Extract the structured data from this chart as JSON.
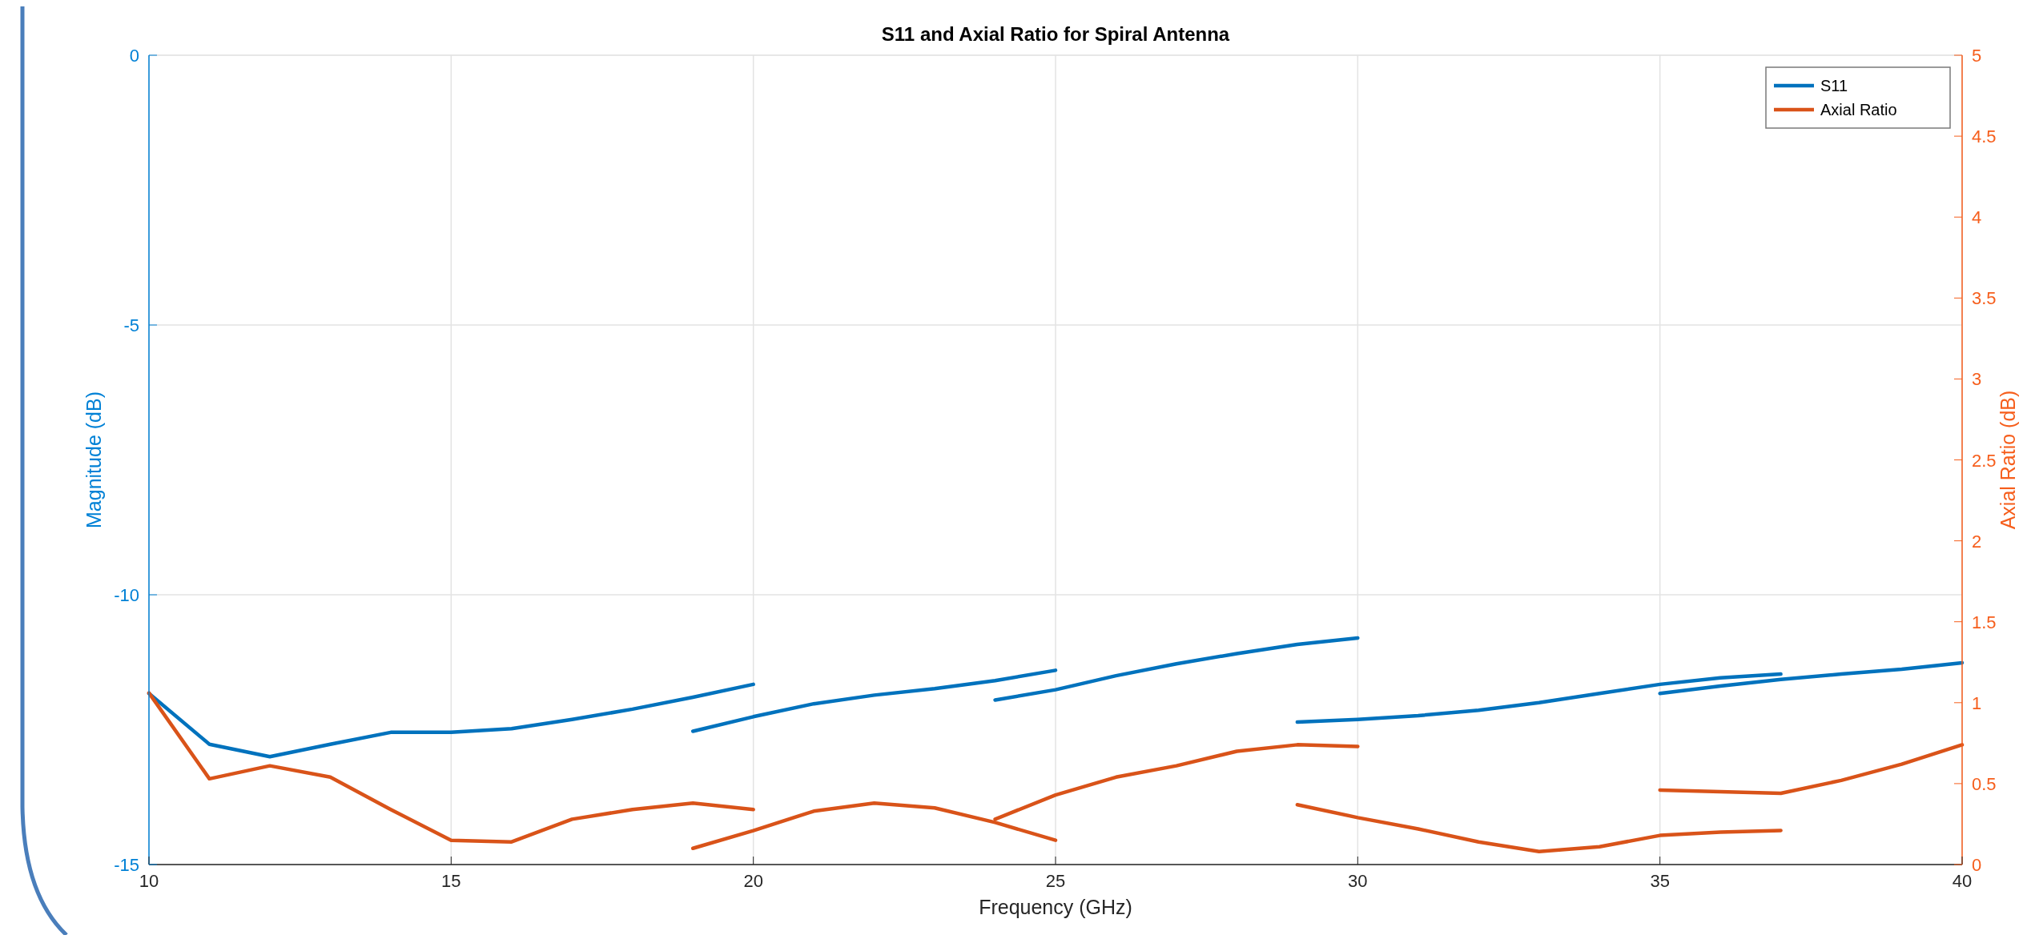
{
  "chart_data": {
    "type": "line",
    "title": "S11 and Axial Ratio for Spiral Antenna",
    "xlabel": "Frequency (GHz)",
    "ylabel": "Magnitude (dB)",
    "y2label": "Axial Ratio (dB)",
    "xlim": [
      10,
      40
    ],
    "xticks": [
      10,
      15,
      20,
      25,
      30,
      35,
      40
    ],
    "ylim": [
      -15,
      0
    ],
    "yticks": [
      -15,
      -10,
      -5,
      0
    ],
    "y2lim": [
      0,
      5
    ],
    "y2ticks": [
      0,
      0.5,
      1,
      1.5,
      2,
      2.5,
      3,
      3.5,
      4,
      4.5,
      5
    ],
    "grid": true,
    "legend": "top right",
    "line_style": "solid",
    "marker": "none",
    "series": [
      {
        "name": "S11",
        "color": "#0072bd",
        "x": [
          10,
          11,
          12,
          13,
          14,
          15,
          16,
          17,
          18,
          19,
          20
        ],
        "values": [
          -11.83,
          -12.77,
          -13.0,
          -12.77,
          -12.55,
          -12.55,
          -12.48,
          -12.31,
          -12.12,
          -11.9,
          -11.66
        ]
      },
      {
        "color": "#0072bd",
        "x": [
          19,
          20,
          21,
          22,
          23,
          24,
          25
        ],
        "values": [
          -12.53,
          -12.26,
          -12.02,
          -11.86,
          -11.74,
          -11.59,
          -11.4
        ]
      },
      {
        "color": "#0072bd",
        "x": [
          24,
          25,
          26,
          27,
          28,
          29,
          30
        ],
        "values": [
          -11.95,
          -11.76,
          -11.5,
          -11.28,
          -11.09,
          -10.92,
          -10.8
        ]
      },
      {
        "color": "#0072bd",
        "x": [
          29,
          30,
          31,
          32,
          33,
          34,
          35,
          36,
          37
        ],
        "values": [
          -12.36,
          -12.31,
          -12.24,
          -12.14,
          -12.0,
          -11.83,
          -11.66,
          -11.54,
          -11.47
        ]
      },
      {
        "color": "#0072bd",
        "x": [
          35,
          36,
          37,
          38,
          39,
          40
        ],
        "values": [
          -11.83,
          -11.69,
          -11.57,
          -11.47,
          -11.38,
          -11.26
        ]
      },
      {
        "name": "Axial Ratio",
        "color": "#d95319",
        "axis": "y2",
        "x": [
          10,
          11,
          12,
          13,
          14,
          15,
          16,
          17,
          18,
          19,
          20
        ],
        "values": [
          1.06,
          0.53,
          0.61,
          0.54,
          0.34,
          0.15,
          0.14,
          0.28,
          0.34,
          0.38,
          0.34
        ]
      },
      {
        "color": "#d95319",
        "axis": "y2",
        "x": [
          19,
          20,
          21,
          22,
          23,
          24,
          25
        ],
        "values": [
          0.1,
          0.21,
          0.33,
          0.38,
          0.35,
          0.26,
          0.15
        ]
      },
      {
        "color": "#d95319",
        "axis": "y2",
        "x": [
          24,
          25,
          26,
          27,
          28,
          29,
          30
        ],
        "values": [
          0.28,
          0.43,
          0.54,
          0.61,
          0.7,
          0.74,
          0.73
        ]
      },
      {
        "color": "#d95319",
        "axis": "y2",
        "x": [
          29,
          30,
          31,
          32,
          33,
          34,
          35,
          36,
          37
        ],
        "values": [
          0.37,
          0.29,
          0.22,
          0.14,
          0.08,
          0.11,
          0.18,
          0.2,
          0.21
        ]
      },
      {
        "color": "#d95319",
        "axis": "y2",
        "x": [
          35,
          36,
          37,
          38,
          39,
          40
        ],
        "values": [
          0.46,
          0.45,
          0.44,
          0.52,
          0.62,
          0.74
        ]
      }
    ]
  }
}
